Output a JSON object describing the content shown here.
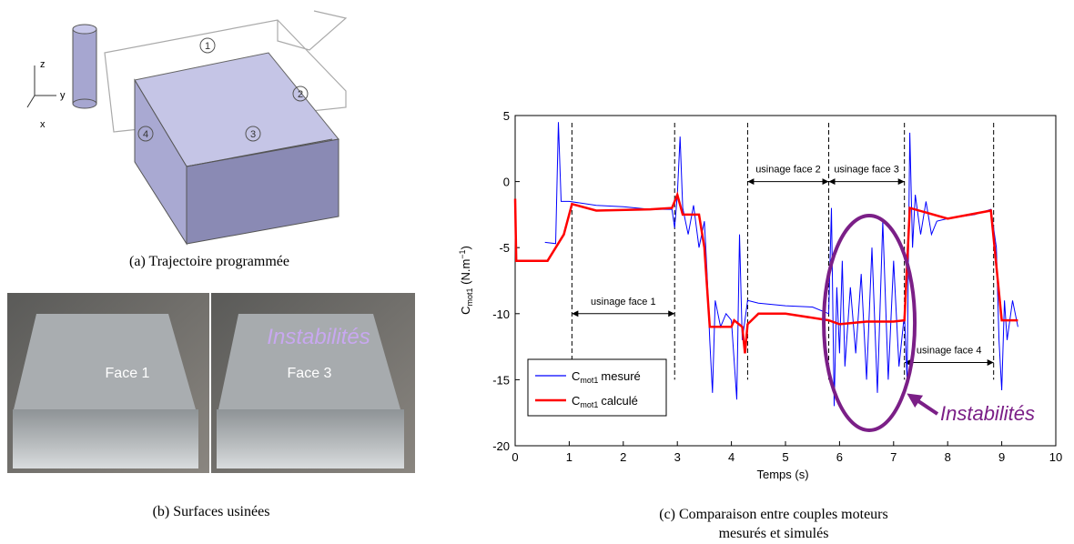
{
  "panel_a": {
    "caption": "(a) Trajectoire programmée",
    "axes": [
      "z",
      "y",
      "x"
    ],
    "markers": [
      "1",
      "2",
      "3",
      "4"
    ]
  },
  "panel_b": {
    "caption": "(b) Surfaces usinées",
    "faces": [
      "Face 1",
      "Face 3"
    ],
    "annotation": "Instabilités"
  },
  "chart_data": {
    "type": "line",
    "caption": [
      "(c) Comparaison entre couples moteurs",
      "mesurés et simulés"
    ],
    "xlabel": "Temps (s)",
    "symbol": "C",
    "symbol_sub": "mot1",
    "ylabel_unit": "(N.m",
    "ylabel_unit_sup": "−1",
    "ylabel_unit_end": ")",
    "xlim": [
      0,
      10
    ],
    "ylim": [
      -20,
      5
    ],
    "xticks": [
      0,
      1,
      2,
      3,
      4,
      5,
      6,
      7,
      8,
      9,
      10
    ],
    "yticks": [
      -20,
      -15,
      -10,
      -5,
      0,
      5
    ],
    "grid": false,
    "series": [
      {
        "name": "mesuré",
        "color": "#0000ff",
        "x": [
          0.55,
          0.75,
          0.8,
          0.85,
          1.0,
          1.5,
          2.0,
          2.5,
          2.9,
          2.95,
          3.0,
          3.05,
          3.1,
          3.2,
          3.3,
          3.4,
          3.5,
          3.55,
          3.6,
          3.65,
          3.7,
          3.8,
          3.9,
          4.0,
          4.1,
          4.15,
          4.2,
          4.3,
          4.5,
          5.0,
          5.5,
          5.8,
          5.85,
          5.9,
          5.95,
          6.0,
          6.05,
          6.1,
          6.2,
          6.3,
          6.4,
          6.5,
          6.6,
          6.7,
          6.8,
          6.9,
          7.0,
          7.1,
          7.2,
          7.25,
          7.3,
          7.35,
          7.4,
          7.5,
          7.6,
          7.7,
          7.8,
          8.0,
          8.5,
          8.8,
          8.9,
          8.95,
          9.0,
          9.05,
          9.1,
          9.2,
          9.3
        ],
        "values": [
          -4.6,
          -4.7,
          4.5,
          -1.5,
          -1.5,
          -1.8,
          -1.9,
          -2.1,
          -2.1,
          -3.5,
          -1,
          3.4,
          -2,
          -4,
          -1.8,
          -5,
          -3,
          -7,
          -12,
          -16,
          -9,
          -11,
          -10,
          -10.5,
          -16.5,
          -4,
          -12,
          -9,
          -9.2,
          -9.4,
          -9.5,
          -10,
          -2,
          -17,
          -8,
          -13,
          -6,
          -14,
          -8,
          -13,
          -7,
          -15,
          -5,
          -16,
          -3,
          -15,
          -6,
          -14,
          -10,
          -15,
          3.7,
          -5,
          -1,
          -4,
          -1.5,
          -4,
          -3,
          -2.8,
          -2.5,
          -2.1,
          -5,
          -12,
          -15.8,
          -9,
          -12,
          -9,
          -11
        ]
      },
      {
        "name": "calculé",
        "color": "#ff0000",
        "x": [
          0,
          0.02,
          0.6,
          0.9,
          1.05,
          1.5,
          2.5,
          2.9,
          3.0,
          3.1,
          3.4,
          3.5,
          3.6,
          4.0,
          4.05,
          4.2,
          4.25,
          4.3,
          4.5,
          5.0,
          5.8,
          6.0,
          6.5,
          7.0,
          7.2,
          7.3,
          8.0,
          8.8,
          9.0,
          9.3
        ],
        "values": [
          -1.3,
          -6,
          -6,
          -4,
          -1.7,
          -2.2,
          -2.1,
          -2,
          -1,
          -2.5,
          -2.5,
          -5,
          -11,
          -11,
          -10.5,
          -11,
          -13,
          -10.8,
          -10,
          -10,
          -10.5,
          -10.8,
          -10.6,
          -10.6,
          -10.5,
          -2,
          -2.8,
          -2.2,
          -10.5,
          -10.5
        ]
      }
    ],
    "phases": [
      {
        "label": "usinage face 1",
        "start": 1.05,
        "end": 2.95,
        "y": -10
      },
      {
        "label": "usinage face 2",
        "start": 4.3,
        "end": 5.8,
        "y": 0
      },
      {
        "label": "usinage face 3",
        "start": 5.8,
        "end": 7.2,
        "y": 0
      },
      {
        "label": "usinage face 4",
        "start": 7.2,
        "end": 8.85,
        "y": -13.7
      }
    ],
    "annotation": "Instabilités"
  }
}
